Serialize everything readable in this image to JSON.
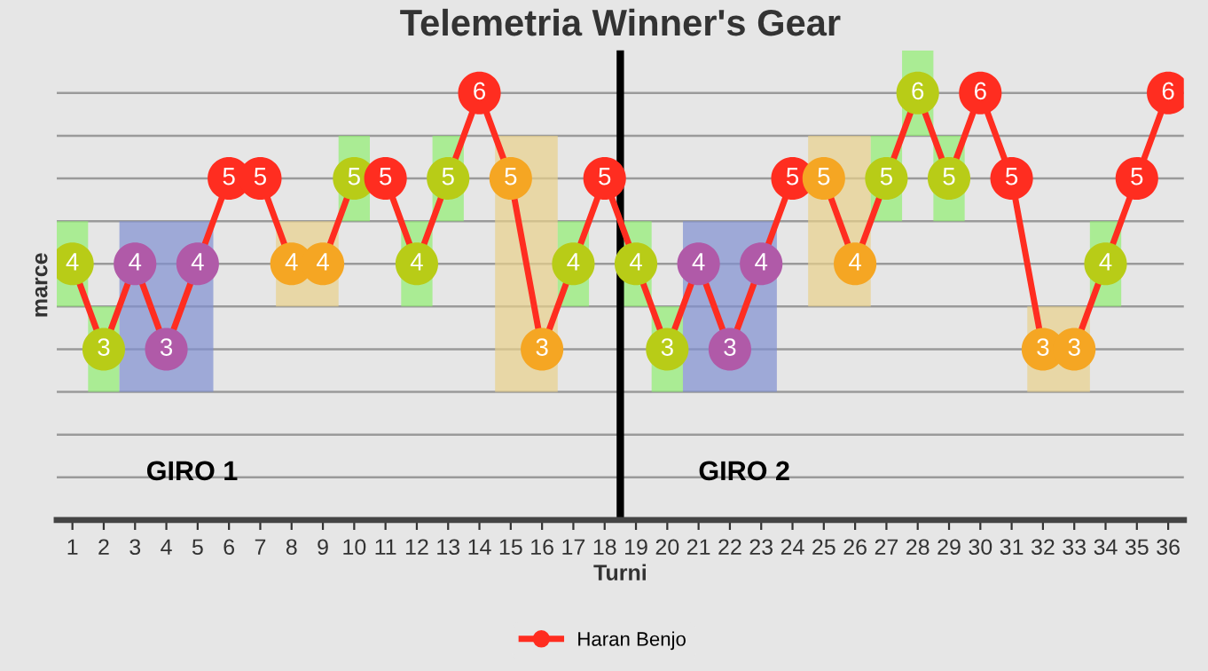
{
  "chart_data": {
    "type": "line",
    "title": "Telemetria Winner's Gear",
    "xlabel": "Turni",
    "ylabel": "marce",
    "x": [
      1,
      2,
      3,
      4,
      5,
      6,
      7,
      8,
      9,
      10,
      11,
      12,
      13,
      14,
      15,
      16,
      17,
      18,
      19,
      20,
      21,
      22,
      23,
      24,
      25,
      26,
      27,
      28,
      29,
      30,
      31,
      32,
      33,
      34,
      35,
      36
    ],
    "series": [
      {
        "name": "Haran Benjo",
        "color": "#ff2d20",
        "values": [
          4,
          3,
          4,
          3,
          4,
          5,
          5,
          4,
          4,
          5,
          5,
          4,
          5,
          6,
          5,
          3,
          4,
          5,
          4,
          3,
          4,
          3,
          4,
          5,
          5,
          4,
          5,
          6,
          5,
          6,
          5,
          3,
          3,
          4,
          5,
          6
        ],
        "colors": [
          "#b8cc17",
          "#b8cc17",
          "#b05aa8",
          "#b05aa8",
          "#b05aa8",
          "#ff2d20",
          "#ff2d20",
          "#f5a623",
          "#f5a623",
          "#b8cc17",
          "#ff2d20",
          "#b8cc17",
          "#b8cc17",
          "#ff2d20",
          "#f5a623",
          "#f5a623",
          "#b8cc17",
          "#ff2d20",
          "#b8cc17",
          "#b8cc17",
          "#b05aa8",
          "#b05aa8",
          "#b05aa8",
          "#ff2d20",
          "#f5a623",
          "#f5a623",
          "#b8cc17",
          "#b8cc17",
          "#b8cc17",
          "#ff2d20",
          "#ff2d20",
          "#f5a623",
          "#f5a623",
          "#b8cc17",
          "#ff2d20",
          "#ff2d20"
        ]
      }
    ],
    "data_labels": true,
    "marker": "circle",
    "xlim": [
      0.5,
      36.5
    ],
    "xticks": [
      1,
      2,
      3,
      4,
      5,
      6,
      7,
      8,
      9,
      10,
      11,
      12,
      13,
      14,
      15,
      16,
      17,
      18,
      19,
      20,
      21,
      22,
      23,
      24,
      25,
      26,
      27,
      28,
      29,
      30,
      31,
      32,
      33,
      34,
      35,
      36
    ],
    "ylim": [
      1,
      6.5
    ],
    "yticks": [
      {
        "value": 1.5,
        "label": null
      },
      {
        "value": 2,
        "label": null
      },
      {
        "value": 2.5,
        "label": null
      },
      {
        "value": 3,
        "label": null
      },
      {
        "value": 3.5,
        "label": null
      },
      {
        "value": 4,
        "label": null
      },
      {
        "value": 4.5,
        "label": null
      },
      {
        "value": 5,
        "label": null
      },
      {
        "value": 5.5,
        "label": null
      },
      {
        "value": 6,
        "label": null
      }
    ],
    "tick_labels": "x",
    "grid": "y",
    "legend": "bottom",
    "ref_lines": [
      {
        "axis": "x",
        "value": 18.5,
        "label": null,
        "color": "#000000"
      }
    ],
    "bands": [
      {
        "axis": "x",
        "from": 0.5,
        "to": 1.5,
        "label": null,
        "color": "#90ee70"
      },
      {
        "axis": "x",
        "from": 1.5,
        "to": 2.5,
        "label": null,
        "color": "#90ee70"
      },
      {
        "axis": "x",
        "from": 2.5,
        "to": 5.5,
        "label": null,
        "color": "#7f8fd0"
      },
      {
        "axis": "x",
        "from": 7.5,
        "to": 9.5,
        "label": null,
        "color": "#e8d08a"
      },
      {
        "axis": "x",
        "from": 9.5,
        "to": 10.5,
        "label": null,
        "color": "#90ee70"
      },
      {
        "axis": "x",
        "from": 11.5,
        "to": 12.5,
        "label": null,
        "color": "#90ee70"
      },
      {
        "axis": "x",
        "from": 12.5,
        "to": 13.5,
        "label": null,
        "color": "#90ee70"
      },
      {
        "axis": "x",
        "from": 14.5,
        "to": 16.5,
        "label": null,
        "color": "#e8d08a"
      },
      {
        "axis": "x",
        "from": 16.5,
        "to": 17.5,
        "label": null,
        "color": "#90ee70"
      },
      {
        "axis": "x",
        "from": 18.5,
        "to": 19.5,
        "label": null,
        "color": "#90ee70"
      },
      {
        "axis": "x",
        "from": 19.5,
        "to": 20.5,
        "label": null,
        "color": "#90ee70"
      },
      {
        "axis": "x",
        "from": 20.5,
        "to": 23.5,
        "label": null,
        "color": "#7f8fd0"
      },
      {
        "axis": "x",
        "from": 24.5,
        "to": 26.5,
        "label": null,
        "color": "#e8d08a"
      },
      {
        "axis": "x",
        "from": 26.5,
        "to": 27.5,
        "label": null,
        "color": "#90ee70"
      },
      {
        "axis": "x",
        "from": 27.5,
        "to": 28.5,
        "label": null,
        "color": "#90ee70"
      },
      {
        "axis": "x",
        "from": 28.5,
        "to": 29.5,
        "label": null,
        "color": "#90ee70"
      },
      {
        "axis": "x",
        "from": 31.5,
        "to": 33.5,
        "label": null,
        "color": "#e8d08a"
      },
      {
        "axis": "x",
        "from": 33.5,
        "to": 34.5,
        "label": null,
        "color": "#90ee70"
      }
    ],
    "annotations": [
      "GIRO 1",
      "GIRO 2"
    ]
  }
}
